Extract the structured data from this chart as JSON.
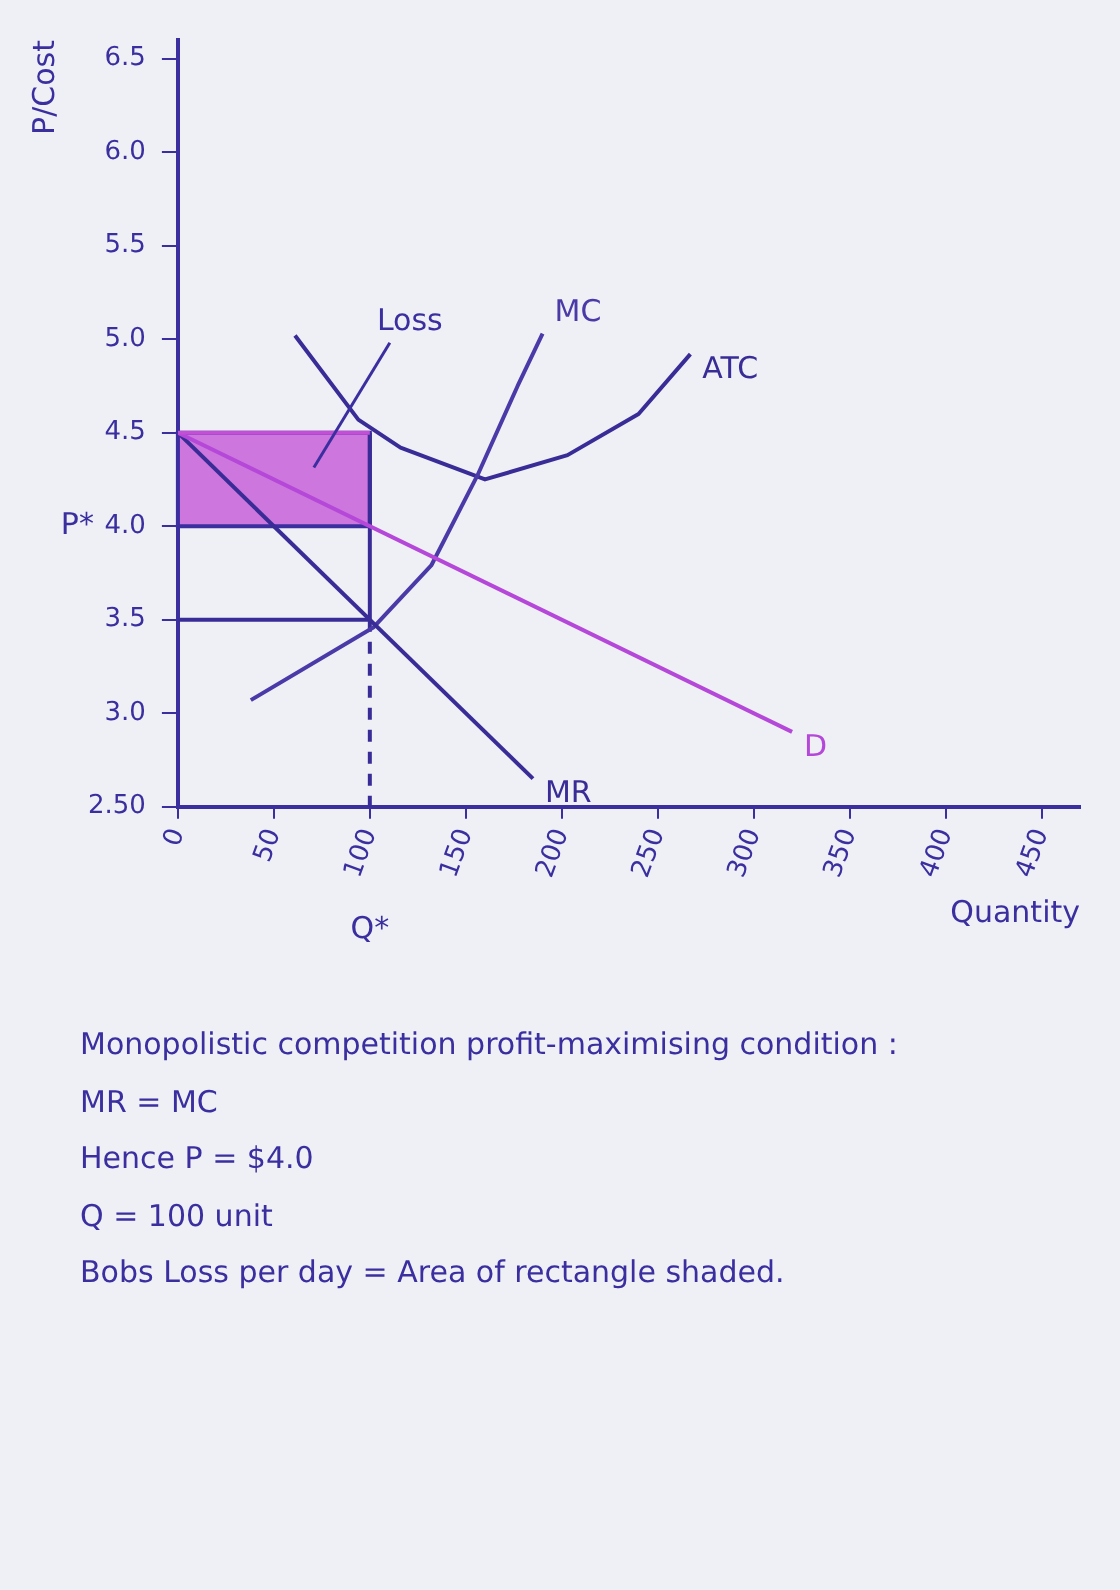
{
  "chart_data": {
    "type": "line",
    "xlabel": "Quantity",
    "ylabel": "P/Cost",
    "xlim": [
      0,
      470
    ],
    "ylim": [
      2.5,
      6.6
    ],
    "xticks": [
      0,
      50,
      100,
      150,
      200,
      250,
      300,
      350,
      400,
      450
    ],
    "yticks": [
      {
        "value": 2.5,
        "label": "2.50"
      },
      {
        "value": 3,
        "label": "3.0"
      },
      {
        "value": 3.5,
        "label": "3.5"
      },
      {
        "value": 4,
        "label": "4.0"
      },
      {
        "value": 4.5,
        "label": "4.5"
      },
      {
        "value": 5,
        "label": "5.0"
      },
      {
        "value": 5.5,
        "label": "5.5"
      },
      {
        "value": 6,
        "label": "6.0"
      },
      {
        "value": 6.5,
        "label": "6.5"
      }
    ],
    "grid": false,
    "legend": false,
    "marker": "none",
    "series": [
      {
        "color": "#c24fd6",
        "x": [
          0,
          100
        ],
        "values": [
          4.5,
          4.5
        ],
        "lower": [
          4.0,
          4.0
        ],
        "upper": [
          4.5,
          4.5
        ]
      },
      {
        "name": "D",
        "color": "#b548d8",
        "x": [
          0,
          320
        ],
        "values": [
          4.5,
          2.9
        ]
      },
      {
        "name": "MR",
        "color": "#3a2c96",
        "x": [
          0,
          185
        ],
        "values": [
          4.5,
          2.65
        ]
      },
      {
        "name": "MC",
        "color": "#4a3aa8",
        "x": [
          38,
          102,
          132,
          156,
          177,
          190
        ],
        "values": [
          3.07,
          3.46,
          3.79,
          4.27,
          4.75,
          5.03
        ]
      },
      {
        "name": "ATC",
        "color": "#3a2c96",
        "x": [
          61,
          94,
          116,
          160,
          203,
          240,
          267
        ],
        "values": [
          5.02,
          4.57,
          4.42,
          4.25,
          4.38,
          4.6,
          4.92
        ]
      },
      {
        "color": "#3a2c96",
        "x": [
          0,
          100,
          100
        ],
        "values": [
          3.5,
          3.5,
          4.5
        ]
      },
      {
        "color": "#3a2c96",
        "x": [
          100,
          100
        ],
        "values": [
          3.5,
          2.5
        ],
        "line_style": "dashed"
      }
    ],
    "annotations": [
      "Loss",
      "P*",
      "Q*",
      "Monopolistic competition profit-maximising condition :",
      "MR = MC",
      "Hence   P = $4.0",
      "Q = 100 unit",
      "Bobs   Loss per day = Area of rectangle shaded."
    ]
  }
}
